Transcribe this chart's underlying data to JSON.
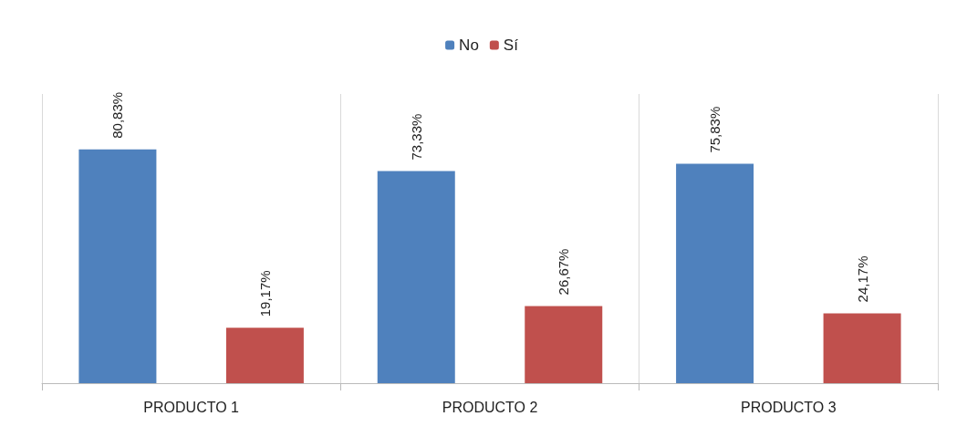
{
  "chart_data": {
    "type": "bar",
    "categories": [
      "PRODUCTO 1",
      "PRODUCTO 2",
      "PRODUCTO 3"
    ],
    "series": [
      {
        "name": "No",
        "color": "#4f81bd",
        "values": [
          80.83,
          73.33,
          75.83
        ],
        "value_labels": [
          "80,83%",
          "73,33%",
          "75,83%"
        ]
      },
      {
        "name": "Sí",
        "color": "#c0504d",
        "values": [
          19.17,
          26.67,
          24.17
        ],
        "value_labels": [
          "19,17%",
          "26,67%",
          "24,17%"
        ]
      }
    ],
    "grid": "x",
    "legend": "top"
  }
}
